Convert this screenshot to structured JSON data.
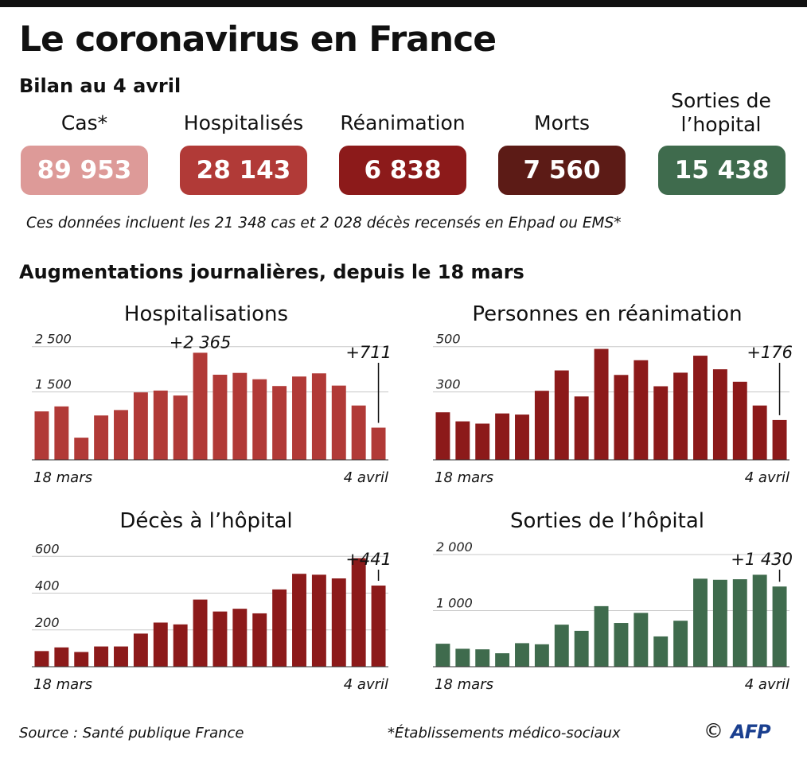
{
  "title": "Le coronavirus en France",
  "subtitle": "Bilan au 4 avril",
  "stats": [
    {
      "label": "Cas*",
      "value": "89 953",
      "color": "#dd9a98"
    },
    {
      "label": "Hospitalisés",
      "value": "28 143",
      "color": "#b13a37"
    },
    {
      "label": "Réanimation",
      "value": "6 838",
      "color": "#8c1a1a"
    },
    {
      "label": "Morts",
      "value": "7 560",
      "color": "#5c1b16"
    },
    {
      "label": "Sorties de l’hopital",
      "value": "15 438",
      "color": "#3f6b4d"
    }
  ],
  "note": "Ces données incluent les 21 348 cas et 2 028 décès recensés en Ehpad ou EMS*",
  "section_title": "Augmentations journalières, depuis le 18 mars",
  "chart_data": [
    {
      "type": "bar",
      "title": "Hospitalisations",
      "color": "#b13a37",
      "x_start_label": "18 mars",
      "x_end_label": "4 avril",
      "yticks": [
        {
          "value": 1500,
          "label": "1 500"
        },
        {
          "value": 2500,
          "label": "2 500"
        }
      ],
      "ylim": [
        0,
        2600
      ],
      "values": [
        1070,
        1180,
        490,
        980,
        1100,
        1490,
        1530,
        1420,
        2365,
        1880,
        1920,
        1780,
        1630,
        1840,
        1910,
        1640,
        1200,
        711
      ],
      "annotations": [
        {
          "index": 8,
          "text": "+2 365",
          "leader": false
        },
        {
          "index": 17,
          "text": "+711",
          "leader": true
        }
      ]
    },
    {
      "type": "bar",
      "title": "Personnes en réanimation",
      "color": "#8c1a1a",
      "x_start_label": "18 mars",
      "x_end_label": "4 avril",
      "yticks": [
        {
          "value": 300,
          "label": "300"
        },
        {
          "value": 500,
          "label": "500"
        }
      ],
      "ylim": [
        0,
        520
      ],
      "values": [
        210,
        170,
        160,
        205,
        200,
        305,
        395,
        280,
        490,
        375,
        440,
        325,
        385,
        460,
        400,
        345,
        240,
        176
      ],
      "annotations": [
        {
          "index": 17,
          "text": "+176",
          "leader": true
        }
      ]
    },
    {
      "type": "bar",
      "title": "Décès à l’hôpital",
      "color": "#8c1a1a",
      "x_start_label": "18 mars",
      "x_end_label": "4 avril",
      "yticks": [
        {
          "value": 200,
          "label": "200"
        },
        {
          "value": 400,
          "label": "400"
        },
        {
          "value": 600,
          "label": "600"
        }
      ],
      "ylim": [
        0,
        640
      ],
      "values": [
        85,
        105,
        80,
        110,
        110,
        180,
        240,
        230,
        365,
        300,
        315,
        290,
        420,
        505,
        500,
        480,
        590,
        441
      ],
      "annotations": [
        {
          "index": 17,
          "text": "+441",
          "leader": true
        }
      ]
    },
    {
      "type": "bar",
      "title": "Sorties de l’hôpital",
      "color": "#3f6b4d",
      "x_start_label": "18 mars",
      "x_end_label": "4 avril",
      "yticks": [
        {
          "value": 1000,
          "label": "1 000"
        },
        {
          "value": 2000,
          "label": "2 000"
        }
      ],
      "ylim": [
        0,
        2100
      ],
      "values": [
        410,
        320,
        310,
        240,
        420,
        400,
        750,
        640,
        1080,
        780,
        960,
        540,
        820,
        1570,
        1550,
        1560,
        1640,
        1430
      ],
      "annotations": [
        {
          "index": 17,
          "text": "+1 430",
          "leader": true
        }
      ]
    }
  ],
  "footer": {
    "source": "Source : Santé publique France",
    "footnote": "*Établissements médico-sociaux",
    "copyright_symbol": "©",
    "logo_text": "AFP"
  }
}
